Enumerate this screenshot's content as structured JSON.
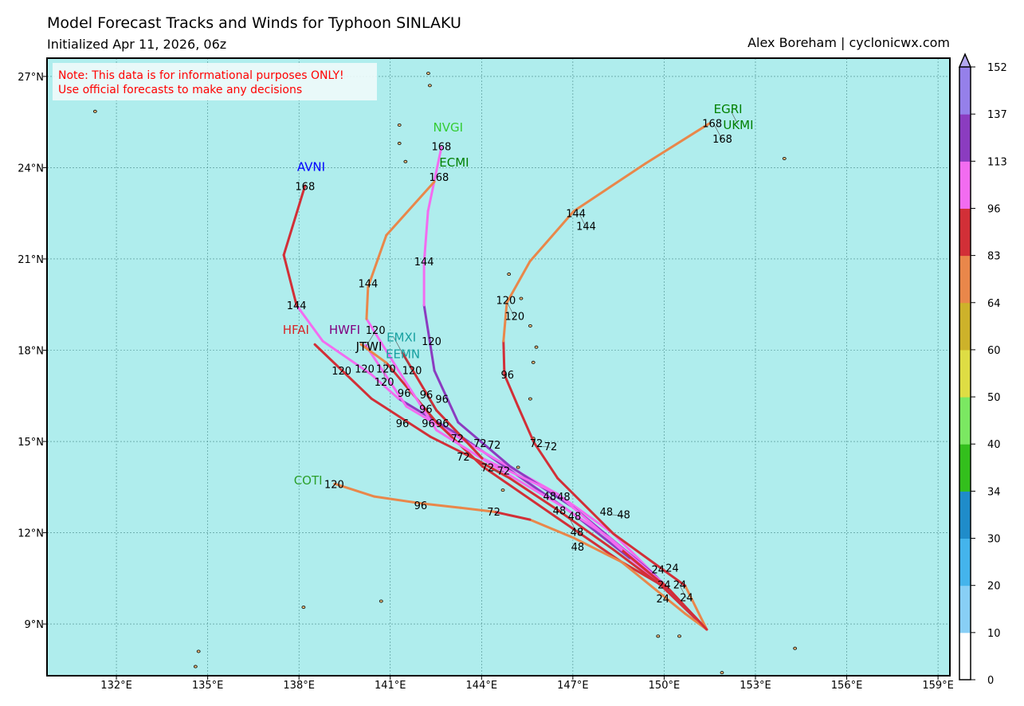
{
  "header": {
    "title": "Model Forecast Tracks and Winds for Typhoon SINLAKU",
    "subtitle": "Initialized Apr 11, 2026, 06z",
    "credit": "Alex Boreham | cyclonicwx.com"
  },
  "note": {
    "line1": "Note: This data is for informational purposes ONLY!",
    "line2": "Use official forecasts to make any decisions",
    "color": "#ff0000"
  },
  "map": {
    "ocean_color": "#afeded",
    "land_color": "#e8b878",
    "lon_range": [
      129.72,
      159.39
    ],
    "lat_range": [
      7.3,
      27.6
    ],
    "lon_ticks": [
      {
        "v": 132,
        "label": "132°E"
      },
      {
        "v": 135,
        "label": "135°E"
      },
      {
        "v": 138,
        "label": "138°E"
      },
      {
        "v": 141,
        "label": "141°E"
      },
      {
        "v": 144,
        "label": "144°E"
      },
      {
        "v": 147,
        "label": "147°E"
      },
      {
        "v": 150,
        "label": "150°E"
      },
      {
        "v": 153,
        "label": "153°E"
      },
      {
        "v": 156,
        "label": "156°E"
      },
      {
        "v": 159,
        "label": "159°E"
      }
    ],
    "lat_ticks": [
      {
        "v": 9,
        "label": "9°N"
      },
      {
        "v": 12,
        "label": "12°N"
      },
      {
        "v": 15,
        "label": "15°N"
      },
      {
        "v": 18,
        "label": "18°N"
      },
      {
        "v": 21,
        "label": "21°N"
      },
      {
        "v": 24,
        "label": "24°N"
      },
      {
        "v": 27,
        "label": "27°N"
      }
    ],
    "islands": [
      [
        131.3,
        25.85
      ],
      [
        134.6,
        7.6
      ],
      [
        134.7,
        8.1
      ],
      [
        138.15,
        9.55
      ],
      [
        140.7,
        9.75
      ],
      [
        142.3,
        26.7
      ],
      [
        142.25,
        27.1
      ],
      [
        141.3,
        25.4
      ],
      [
        141.3,
        24.8
      ],
      [
        141.5,
        24.2
      ],
      [
        144.7,
        13.4
      ],
      [
        145.2,
        14.15
      ],
      [
        145.7,
        15.1
      ],
      [
        145.6,
        16.4
      ],
      [
        145.7,
        17.6
      ],
      [
        145.8,
        18.1
      ],
      [
        145.6,
        18.8
      ],
      [
        145.3,
        19.7
      ],
      [
        144.9,
        20.5
      ],
      [
        153.95,
        24.3
      ],
      [
        154.3,
        8.2
      ],
      [
        149.8,
        8.6
      ],
      [
        151.9,
        7.4
      ],
      [
        150.5,
        8.6
      ]
    ]
  },
  "colorbar": {
    "ticks": [
      "0",
      "10",
      "20",
      "30",
      "34",
      "40",
      "50",
      "60",
      "64",
      "83",
      "96",
      "113",
      "137",
      "152"
    ],
    "colors": [
      "#ffffff",
      "#88cff5",
      "#44b4ec",
      "#1f8cca",
      "#33bf1c",
      "#7be862",
      "#dedd44",
      "#cdb22a",
      "#e9874a",
      "#d22f37",
      "#f26cf0",
      "#8b3cc0",
      "#9580ea"
    ],
    "extend_color": "#b3a8f0"
  },
  "tracks": [
    {
      "model": "AVNI",
      "points": [
        [
          151.4,
          8.82,
          80
        ],
        [
          150.17,
          10.13,
          100
        ],
        [
          148.86,
          11.17,
          100
        ],
        [
          147.03,
          12.61,
          120
        ],
        [
          144.93,
          14.06,
          120
        ],
        [
          143.23,
          15.23,
          120
        ],
        [
          141.27,
          16.41,
          120
        ],
        [
          140.38,
          17.2,
          100
        ],
        [
          138.78,
          18.3,
          100
        ],
        [
          137.92,
          19.48,
          100
        ],
        [
          137.5,
          21.13,
          90
        ],
        [
          138.2,
          23.41,
          90
        ]
      ]
    },
    {
      "model": "HFAI",
      "points": [
        [
          151.4,
          8.82,
          90
        ],
        [
          149.91,
          10.26,
          90
        ],
        [
          148.34,
          11.44,
          90
        ],
        [
          146.5,
          12.75,
          90
        ],
        [
          144.93,
          13.79,
          90
        ],
        [
          143.89,
          14.37,
          90
        ],
        [
          142.31,
          15.16,
          90
        ],
        [
          140.38,
          16.41,
          90
        ],
        [
          138.52,
          18.19,
          90
        ]
      ]
    },
    {
      "model": "HWFI",
      "points": [
        [
          151.4,
          8.82,
          100
        ],
        [
          149.91,
          10.39,
          100
        ],
        [
          148.34,
          11.96,
          100
        ],
        [
          146.5,
          13.27,
          105
        ],
        [
          144.41,
          14.45,
          105
        ],
        [
          142.84,
          15.37,
          105
        ],
        [
          141.53,
          16.15,
          100
        ],
        [
          140.19,
          18.17,
          100
        ]
      ]
    },
    {
      "model": "JTWI",
      "points": [
        [
          151.4,
          8.82,
          90
        ],
        [
          150.17,
          10.13,
          90
        ],
        [
          148.6,
          11.04,
          90
        ],
        [
          146.5,
          12.48,
          90
        ],
        [
          144.02,
          14.19,
          90
        ],
        [
          142.52,
          15.63,
          90
        ],
        [
          140.87,
          17.59,
          90
        ],
        [
          140.04,
          18.19,
          75
        ]
      ]
    },
    {
      "model": "NVGI",
      "points": [
        [
          151.4,
          8.82,
          90
        ],
        [
          149.65,
          10.65,
          120
        ],
        [
          147.03,
          12.82,
          120
        ],
        [
          144.93,
          14.19,
          120
        ],
        [
          143.23,
          15.63,
          120
        ],
        [
          142.45,
          17.33,
          120
        ],
        [
          142.11,
          19.48,
          120
        ],
        [
          142.11,
          20.87,
          105
        ],
        [
          142.24,
          22.57,
          105
        ],
        [
          142.68,
          24.67,
          105
        ]
      ]
    },
    {
      "model": "ECMI",
      "points": [
        [
          151.4,
          8.82,
          90
        ],
        [
          149.91,
          10.39,
          90
        ],
        [
          148.21,
          11.83,
          100
        ],
        [
          146.5,
          12.96,
          100
        ],
        [
          144.41,
          14.19,
          100
        ],
        [
          142.52,
          15.37,
          100
        ],
        [
          141.27,
          17.33,
          100
        ],
        [
          140.22,
          19.03,
          100
        ],
        [
          140.27,
          20.08,
          80
        ],
        [
          140.87,
          21.78,
          80
        ],
        [
          142.45,
          23.54,
          80
        ]
      ]
    },
    {
      "model": "EGRI",
      "points": [
        [
          151.4,
          8.82,
          80
        ],
        [
          150.69,
          10.26,
          80
        ],
        [
          148.34,
          11.96,
          90
        ],
        [
          146.5,
          13.79,
          90
        ],
        [
          145.72,
          14.97,
          90
        ],
        [
          145.2,
          16.15,
          90
        ],
        [
          144.75,
          17.2,
          90
        ],
        [
          144.72,
          18.3,
          90
        ],
        [
          144.83,
          19.56,
          80
        ],
        [
          145.59,
          20.92,
          80
        ],
        [
          147.03,
          22.57,
          80
        ],
        [
          149.39,
          24.14,
          80
        ],
        [
          151.48,
          25.45,
          80
        ]
      ]
    },
    {
      "model": "COTI",
      "points": [
        [
          151.4,
          8.82,
          80
        ],
        [
          150.69,
          9.34,
          80
        ],
        [
          148.6,
          11.04,
          80
        ],
        [
          147.03,
          11.83,
          80
        ],
        [
          145.59,
          12.43,
          80
        ],
        [
          144.41,
          12.69,
          90
        ],
        [
          143.31,
          12.82,
          80
        ],
        [
          142.05,
          12.96,
          80
        ],
        [
          140.48,
          13.19,
          80
        ],
        [
          139.17,
          13.61,
          80
        ]
      ]
    },
    {
      "model": "EMXI",
      "points": [
        [
          151.4,
          8.82,
          90
        ],
        [
          150.17,
          10.13,
          90
        ],
        [
          148.6,
          11.44,
          90
        ],
        [
          146.5,
          13.27,
          100
        ],
        [
          144.02,
          14.45,
          100
        ],
        [
          142.52,
          16.02,
          90
        ],
        [
          141.4,
          17.91,
          90
        ]
      ]
    }
  ],
  "model_labels": [
    {
      "text": "AVNI",
      "lon": 138.4,
      "lat": 24.05,
      "color": "#0000ff"
    },
    {
      "text": "NVGI",
      "lon": 142.9,
      "lat": 25.35,
      "color": "#33cc33"
    },
    {
      "text": "ECMI",
      "lon": 143.1,
      "lat": 24.2,
      "color": "#008000"
    },
    {
      "text": "HFAI",
      "lon": 137.9,
      "lat": 18.7,
      "color": "#d62728"
    },
    {
      "text": "HWFI",
      "lon": 139.5,
      "lat": 18.7,
      "color": "#800080"
    },
    {
      "text": "JTWI",
      "lon": 140.3,
      "lat": 18.15,
      "color": "#000000"
    },
    {
      "text": "EMXI",
      "lon": 141.05,
      "lat": 18.45,
      "color": "#17a0a0"
    },
    {
      "text": "EEMN",
      "lon": 141.1,
      "lat": 18.45,
      "color": "#17a0a0"
    },
    {
      "text": "EGRI",
      "lon": 152.1,
      "lat": 25.95,
      "color": "#008000"
    },
    {
      "text": "UKMI",
      "lon": 152.2,
      "lat": 25.85,
      "color": "#008000"
    },
    {
      "text": "COTI",
      "lon": 138.3,
      "lat": 13.75,
      "color": "#2ca02c"
    }
  ],
  "hour_labels": [
    {
      "text": "168",
      "lon": 138.2,
      "lat": 23.4
    },
    {
      "text": "168",
      "lon": 142.68,
      "lat": 24.7
    },
    {
      "text": "168",
      "lon": 142.6,
      "lat": 23.7
    },
    {
      "text": "168",
      "lon": 151.5,
      "lat": 25.6
    },
    {
      "text": "168",
      "lon": 151.6,
      "lat": 25.5
    },
    {
      "text": "144",
      "lon": 137.92,
      "lat": 19.48
    },
    {
      "text": "144",
      "lon": 140.27,
      "lat": 20.2
    },
    {
      "text": "144",
      "lon": 142.11,
      "lat": 20.92
    },
    {
      "text": "144",
      "lon": 147.1,
      "lat": 22.5
    },
    {
      "text": "144",
      "lon": 147.2,
      "lat": 22.5
    },
    {
      "text": "120",
      "lon": 139.4,
      "lat": 17.33
    },
    {
      "text": "120",
      "lon": 140.0,
      "lat": 17.4
    },
    {
      "text": "120",
      "lon": 140.7,
      "lat": 17.4
    },
    {
      "text": "120",
      "lon": 140.8,
      "lat": 17.6
    },
    {
      "text": "120",
      "lon": 141.4,
      "lat": 17.9
    },
    {
      "text": "120",
      "lon": 142.2,
      "lat": 18.3
    },
    {
      "text": "120",
      "lon": 140.2,
      "lat": 18.12
    },
    {
      "text": "120",
      "lon": 144.8,
      "lat": 19.65
    },
    {
      "text": "120",
      "lon": 144.85,
      "lat": 19.55
    },
    {
      "text": "120",
      "lon": 139.0,
      "lat": 13.6
    },
    {
      "text": "96",
      "lon": 141.3,
      "lat": 16.6
    },
    {
      "text": "96",
      "lon": 141.4,
      "lat": 15.6
    },
    {
      "text": "96",
      "lon": 142.25,
      "lat": 15.6
    },
    {
      "text": "96",
      "lon": 142.4,
      "lat": 15.6
    },
    {
      "text": "96",
      "lon": 142.7,
      "lat": 16.4
    },
    {
      "text": "96",
      "lon": 142.3,
      "lat": 16.0
    },
    {
      "text": "96",
      "lon": 142.5,
      "lat": 16.0
    },
    {
      "text": "96",
      "lon": 144.85,
      "lat": 17.2
    },
    {
      "text": "96",
      "lon": 142.0,
      "lat": 12.9
    },
    {
      "text": "72",
      "lon": 143.2,
      "lat": 15.1
    },
    {
      "text": "72",
      "lon": 143.95,
      "lat": 14.95
    },
    {
      "text": "72",
      "lon": 144.1,
      "lat": 14.9
    },
    {
      "text": "72",
      "lon": 143.4,
      "lat": 14.5
    },
    {
      "text": "72",
      "lon": 144.2,
      "lat": 14.15
    },
    {
      "text": "72",
      "lon": 144.25,
      "lat": 14.05
    },
    {
      "text": "72",
      "lon": 145.8,
      "lat": 14.95
    },
    {
      "text": "72",
      "lon": 145.8,
      "lat": 14.85
    },
    {
      "text": "72",
      "lon": 144.4,
      "lat": 12.7
    },
    {
      "text": "48",
      "lon": 146.7,
      "lat": 13.2
    },
    {
      "text": "48",
      "lon": 146.4,
      "lat": 13.0
    },
    {
      "text": "48",
      "lon": 146.5,
      "lat": 13.05
    },
    {
      "text": "48",
      "lon": 146.9,
      "lat": 12.55
    },
    {
      "text": "48",
      "lon": 146.9,
      "lat": 12.45
    },
    {
      "text": "48",
      "lon": 148.1,
      "lat": 12.7
    },
    {
      "text": "48",
      "lon": 148.2,
      "lat": 12.6
    },
    {
      "text": "48",
      "lon": 147.0,
      "lat": 11.8
    },
    {
      "text": "24",
      "lon": 149.8,
      "lat": 10.8
    },
    {
      "text": "24",
      "lon": 150.0,
      "lat": 10.3
    },
    {
      "text": "24",
      "lon": 150.2,
      "lat": 10.3
    },
    {
      "text": "24",
      "lon": 150.5,
      "lat": 10.3
    },
    {
      "text": "24",
      "lon": 149.95,
      "lat": 10.85
    },
    {
      "text": "24",
      "lon": 149.8,
      "lat": 10.1
    }
  ]
}
